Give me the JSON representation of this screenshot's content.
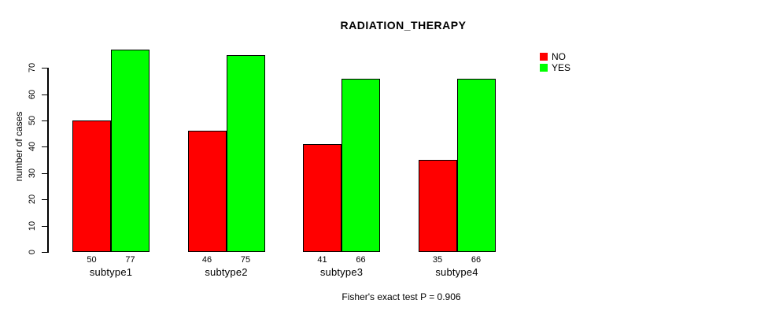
{
  "chart_data": {
    "type": "bar",
    "title": "RADIATION_THERAPY",
    "ylabel": "number of cases",
    "xlabel": "",
    "categories": [
      "subtype1",
      "subtype2",
      "subtype3",
      "subtype4"
    ],
    "series": [
      {
        "name": "NO",
        "color": "#ff0000",
        "values": [
          50,
          46,
          41,
          35
        ]
      },
      {
        "name": "YES",
        "color": "#00ff00",
        "values": [
          77,
          75,
          66,
          66
        ]
      }
    ],
    "bar_value_labels": [
      [
        50,
        77
      ],
      [
        46,
        75
      ],
      [
        41,
        66
      ],
      [
        35,
        66
      ]
    ],
    "ylim": [
      0,
      70
    ],
    "yticks": [
      0,
      10,
      20,
      30,
      40,
      50,
      60,
      70
    ],
    "grid": false,
    "legend_position": "top-right",
    "caption": "Fisher's exact test P = 0.906"
  }
}
